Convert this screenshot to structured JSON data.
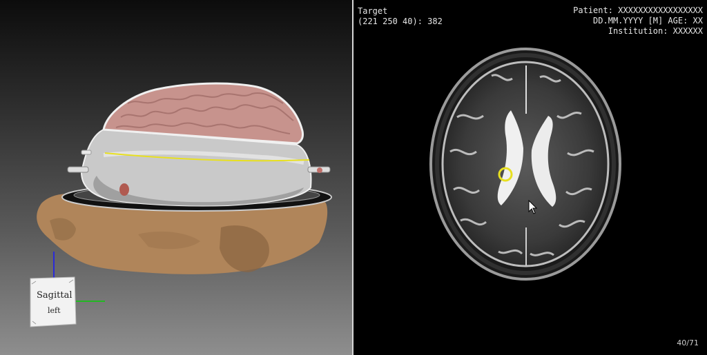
{
  "viewer_3d": {
    "orientation_cube": {
      "face_label": "Sagittal",
      "sub_label": "left"
    }
  },
  "viewer_2d": {
    "target_title": "Target",
    "target_value": "(221 250 40): 382",
    "patient_line": "Patient: XXXXXXXXXXXXXXXXX",
    "date_line": "DD.MM.YYYY [M] AGE: XX",
    "institution_line": "Institution: XXXXXX",
    "slice_counter": "40/71"
  },
  "colors": {
    "cortex": "#c7938d",
    "skin": "#b0855a",
    "marker": "#e8e020",
    "axis_blue": "#2a2ad8",
    "axis_green": "#22b822"
  },
  "icons": [
    "orientation-cube-icon",
    "mouse-cursor-icon",
    "target-marker-icon"
  ]
}
